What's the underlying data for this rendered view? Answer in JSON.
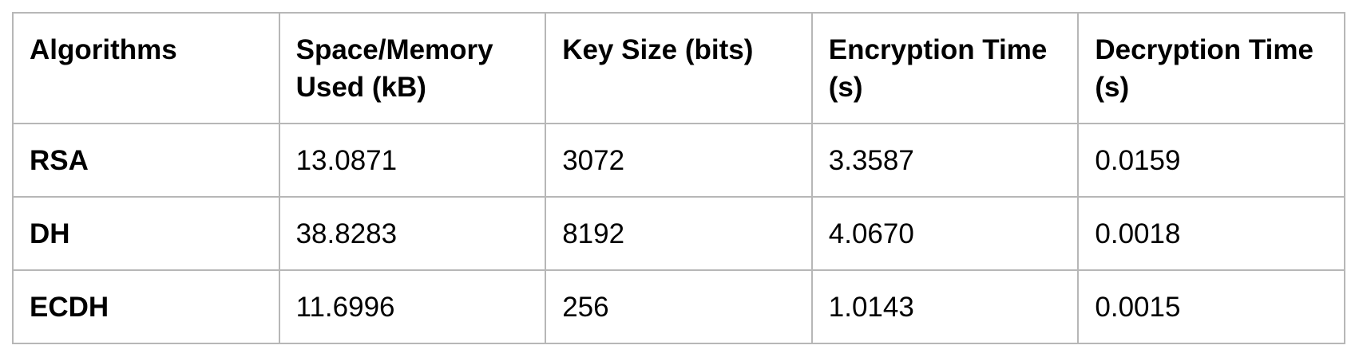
{
  "table": {
    "headers": [
      "Algorithms",
      "Space/Memory Used (kB)",
      "Key Size (bits)",
      "Encryption Time (s)",
      "Decryption Time (s)"
    ],
    "rows": [
      [
        "RSA",
        "13.0871",
        "3072",
        "3.3587",
        "0.0159"
      ],
      [
        "DH",
        "38.8283",
        "8192",
        "4.0670",
        "0.0018"
      ],
      [
        "ECDH",
        "11.6996",
        "256",
        "1.0143",
        "0.0015"
      ]
    ]
  }
}
